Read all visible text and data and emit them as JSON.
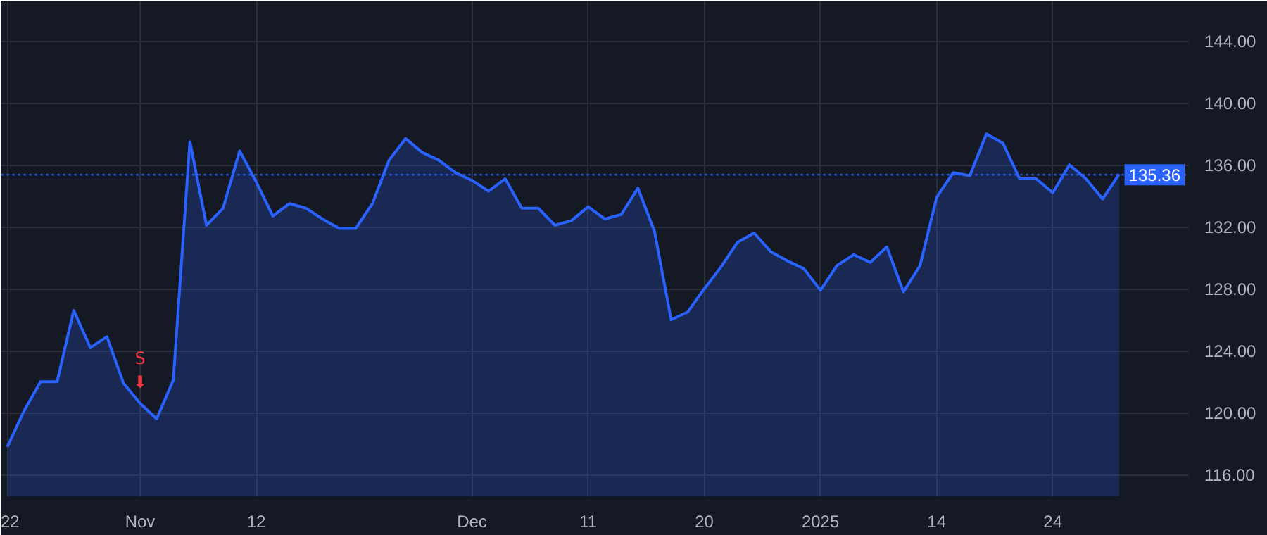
{
  "chart_data": {
    "type": "area",
    "categories": [
      "22",
      null,
      null,
      null,
      null,
      null,
      null,
      null,
      "Nov",
      null,
      null,
      null,
      null,
      null,
      null,
      "12",
      null,
      null,
      null,
      null,
      null,
      null,
      null,
      null,
      null,
      null,
      null,
      null,
      "Dec",
      null,
      null,
      null,
      null,
      null,
      null,
      "11",
      null,
      null,
      null,
      null,
      null,
      null,
      "20",
      null,
      null,
      null,
      null,
      null,
      null,
      "2025",
      null,
      null,
      null,
      null,
      null,
      null,
      "14",
      null,
      null,
      null,
      null,
      null,
      null,
      "24",
      null,
      null,
      null,
      null
    ],
    "series": [
      {
        "color": "#2962ff",
        "values": [
          117.8,
          120.1,
          122.0,
          122.0,
          126.6,
          124.2,
          124.9,
          121.9,
          120.6,
          119.6,
          122.1,
          137.5,
          132.1,
          133.2,
          136.9,
          134.9,
          132.7,
          133.5,
          133.2,
          132.5,
          131.9,
          131.9,
          133.5,
          136.3,
          137.7,
          136.8,
          136.3,
          135.5,
          135.0,
          134.3,
          135.1,
          133.2,
          133.2,
          132.1,
          132.4,
          133.3,
          132.5,
          132.8,
          134.5,
          131.7,
          126.0,
          126.5,
          128.0,
          129.4,
          131.0,
          131.6,
          130.4,
          129.8,
          129.3,
          127.9,
          129.5,
          130.2,
          129.7,
          130.7,
          127.8,
          129.5,
          133.9,
          135.5,
          135.3,
          138.0,
          137.4,
          135.1,
          135.1,
          134.2,
          136.0,
          135.1,
          133.8,
          135.4
        ]
      }
    ],
    "ylim": [
      114.6,
      146.6
    ],
    "yticks": [
      {
        "value": 116,
        "label": "116.00"
      },
      {
        "value": 120,
        "label": "120.00"
      },
      {
        "value": 124,
        "label": "124.00"
      },
      {
        "value": 128,
        "label": "128.00"
      },
      {
        "value": 132,
        "label": "132.00"
      },
      {
        "value": 136,
        "label": "136.00"
      },
      {
        "value": 140,
        "label": "140.00"
      },
      {
        "value": 144,
        "label": "144.00"
      }
    ],
    "grid": true,
    "ref_lines": [
      {
        "axis": "y",
        "value": 135.36,
        "label": "135.36",
        "color": "#2962ff",
        "line_style": "dotted"
      }
    ],
    "annotations": [
      {
        "text": "S\n⬇",
        "x": "Nov",
        "y": 120.6
      }
    ]
  }
}
